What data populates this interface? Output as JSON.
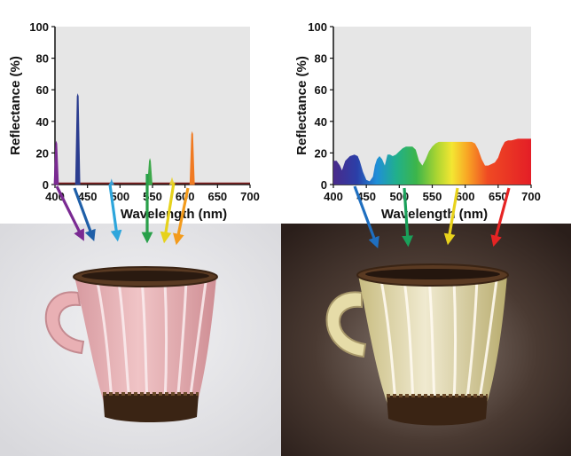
{
  "chart_data": [
    {
      "type": "line",
      "ylabel": "Reflectance (%)",
      "xlabel": "Wavelength (nm)",
      "xlim": [
        400,
        700
      ],
      "ylim": [
        0,
        100
      ],
      "x_ticks": [
        400,
        450,
        500,
        550,
        600,
        650,
        700
      ],
      "y_ticks": [
        0,
        20,
        40,
        60,
        80,
        100
      ],
      "grid": false,
      "peaks": [
        {
          "x": 402,
          "y": 27,
          "color": "#7a2a92"
        },
        {
          "x": 435,
          "y": 57,
          "color": "#2b3d8f"
        },
        {
          "x": 487,
          "y": 3,
          "color": "#3aa0d8"
        },
        {
          "x": 546,
          "y": 16,
          "color": "#3da84a"
        },
        {
          "x": 580,
          "y": 4,
          "color": "#e8d23a"
        },
        {
          "x": 611,
          "y": 33,
          "color": "#f07a22"
        }
      ],
      "baseline_color": "#7b1a1a"
    },
    {
      "type": "area",
      "ylabel": "Reflectance (%)",
      "xlabel": "Wavelength (nm)",
      "xlim": [
        400,
        700
      ],
      "ylim": [
        0,
        100
      ],
      "x_ticks": [
        400,
        450,
        500,
        550,
        600,
        650,
        700
      ],
      "y_ticks": [
        0,
        20,
        40,
        60,
        80,
        100
      ],
      "grid": false,
      "x": [
        400,
        405,
        410,
        413,
        418,
        425,
        432,
        437,
        440,
        445,
        450,
        455,
        460,
        463,
        466,
        470,
        474,
        478,
        482,
        486,
        490,
        495,
        500,
        505,
        510,
        515,
        520,
        525,
        530,
        535,
        540,
        545,
        550,
        555,
        560,
        570,
        580,
        590,
        600,
        610,
        615,
        620,
        625,
        630,
        635,
        640,
        645,
        650,
        655,
        660,
        665,
        670,
        680,
        690,
        700
      ],
      "y": [
        15,
        15,
        12,
        9,
        15,
        18,
        19,
        18,
        15,
        8,
        3,
        2,
        5,
        12,
        16,
        18,
        16,
        12,
        19,
        19,
        18,
        19,
        21,
        23,
        24,
        24,
        24,
        22,
        15,
        12,
        16,
        21,
        24,
        26,
        27,
        27,
        27,
        27,
        27,
        27,
        26,
        22,
        16,
        12,
        12,
        13,
        14,
        17,
        23,
        27,
        28,
        28,
        29,
        29,
        29
      ]
    }
  ],
  "photos": {
    "left": {
      "subject": "pink-cup-photo",
      "cup_color": "#e7b5b8",
      "background": "#e9eaec"
    },
    "right": {
      "subject": "yellow-cup-photo",
      "cup_color": "#e2d9a8",
      "background": "#3a2d28"
    }
  },
  "arrows": {
    "left": [
      "#7a2a92",
      "#1f5fa8",
      "#2ea6dc",
      "#29a04a",
      "#e6d21c",
      "#f39b1c"
    ],
    "right": [
      "#1f6fc0",
      "#1aa05a",
      "#e8d21c",
      "#e62424"
    ]
  }
}
